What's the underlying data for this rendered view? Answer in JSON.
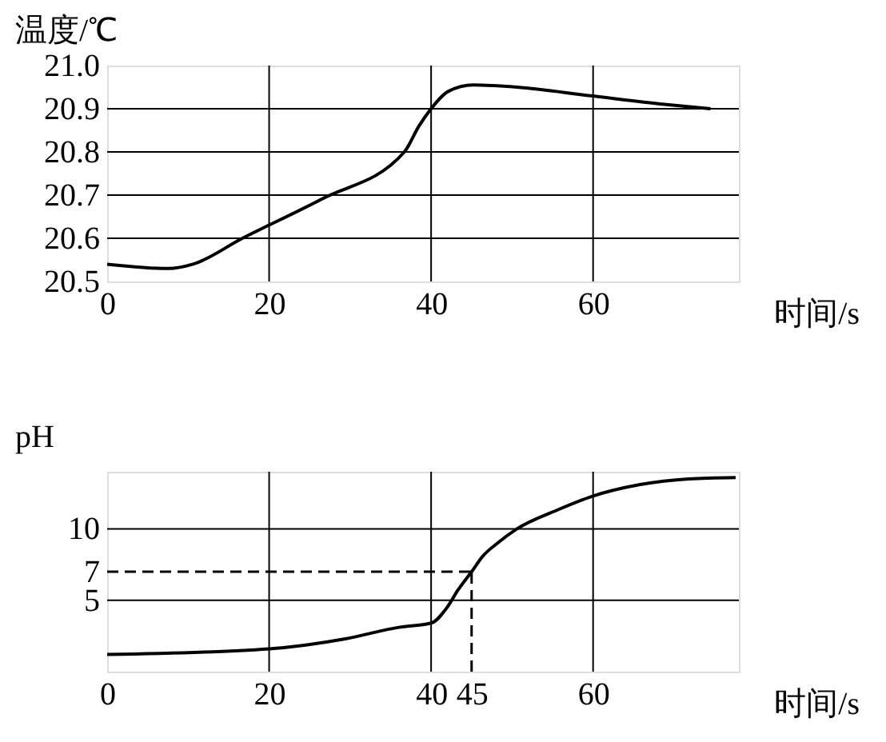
{
  "chart_data": [
    {
      "type": "line",
      "ylabel": "温度/℃",
      "xlabel": "时间/s",
      "color": "#000000",
      "grid": true,
      "x": [
        0,
        7.6,
        10.6,
        16.7,
        26.4,
        36.7,
        38.5,
        40,
        42.1,
        45.2,
        50.6,
        59.7,
        68.8,
        74.5
      ],
      "values": [
        20.54,
        20.53,
        20.54,
        20.6,
        20.69,
        20.8,
        20.86,
        20.9,
        20.94,
        20.955,
        20.95,
        20.93,
        20.91,
        20.9
      ],
      "xlim": [
        0,
        78
      ],
      "xticks": [
        0,
        20,
        40,
        60
      ],
      "ylim": [
        20.5,
        21.0
      ],
      "yticks": [
        20.5,
        20.6,
        20.7,
        20.8,
        20.9,
        {
          "value": 21.0,
          "label": "21.0"
        }
      ]
    },
    {
      "type": "line",
      "ylabel": "pH",
      "xlabel": "时间/s",
      "color": "#000000",
      "grid": true,
      "x": [
        0,
        20,
        29.4,
        36,
        40,
        42.1,
        43.3,
        45,
        46.4,
        48.2,
        50.6,
        55.5,
        60,
        65.8,
        71.8,
        77.6
      ],
      "values": [
        1.2,
        1.6,
        2.3,
        3.1,
        3.4,
        4.6,
        5.7,
        7.0,
        8.1,
        9.0,
        10,
        11.3,
        12.3,
        13.1,
        13.5,
        13.6
      ],
      "xlim": [
        0,
        78
      ],
      "xticks": [
        0,
        20,
        40,
        45,
        60
      ],
      "ylim": [
        0,
        14
      ],
      "yticks": [
        5,
        7,
        10
      ],
      "ref_lines": [
        {
          "axis": "y",
          "value": 7,
          "line_style": "dashed"
        },
        {
          "axis": "x",
          "value": 45,
          "line_style": "dashed"
        }
      ]
    }
  ]
}
